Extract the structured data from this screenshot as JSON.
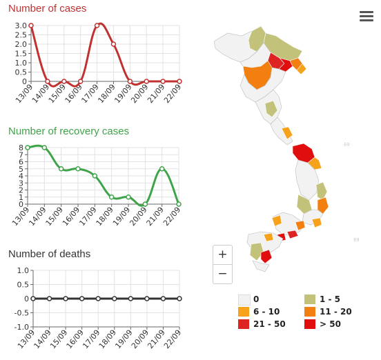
{
  "charts": {
    "cases": {
      "title": "Number of cases",
      "color": "#c0312f"
    },
    "recovery": {
      "title": "Number of recovery cases",
      "color": "#3ea448"
    },
    "deaths": {
      "title": "Number of deaths",
      "color": "#333333"
    }
  },
  "chart_data": [
    {
      "type": "line",
      "title": "Number of cases",
      "categories": [
        "13/09",
        "14/09",
        "15/09",
        "16/09",
        "17/09",
        "18/09",
        "19/09",
        "20/09",
        "21/09",
        "22/09"
      ],
      "values": [
        3,
        0,
        0,
        0,
        3,
        2,
        0,
        0,
        0,
        0
      ],
      "yticks": [
        "3.0",
        "2.5",
        "2.0",
        "1.5",
        "1.0",
        "0.5",
        "0"
      ],
      "ylim": [
        0,
        3
      ],
      "grid": true,
      "color": "#c0312f"
    },
    {
      "type": "line",
      "title": "Number of recovery cases",
      "categories": [
        "13/09",
        "14/09",
        "15/09",
        "16/09",
        "17/09",
        "18/09",
        "19/09",
        "20/09",
        "21/09",
        "22/09"
      ],
      "values": [
        8,
        8,
        5,
        5,
        4,
        1,
        1,
        0,
        5,
        0
      ],
      "yticks": [
        "8",
        "7",
        "6",
        "5",
        "4",
        "3",
        "2",
        "1",
        "0"
      ],
      "ylim": [
        0,
        8
      ],
      "grid": true,
      "color": "#3ea448"
    },
    {
      "type": "line",
      "title": "Number of deaths",
      "categories": [
        "13/09",
        "14/09",
        "15/09",
        "16/09",
        "17/09",
        "18/09",
        "19/09",
        "20/09",
        "21/09",
        "22/09"
      ],
      "values": [
        0,
        0,
        0,
        0,
        0,
        0,
        0,
        0,
        0,
        0
      ],
      "yticks": [
        "1.0",
        "0.5",
        "0",
        "-0.5",
        "-1.0"
      ],
      "ylim": [
        -1,
        1
      ],
      "grid": true,
      "color": "#333333"
    }
  ],
  "map": {
    "zoom_in_label": "+",
    "zoom_out_label": "−",
    "legend": [
      {
        "label": "0",
        "color": "#f2f2f2"
      },
      {
        "label": "1 - 5",
        "color": "#c3c27a"
      },
      {
        "label": "6 - 10",
        "color": "#f7a21b"
      },
      {
        "label": "11 - 20",
        "color": "#f27f10"
      },
      {
        "label": "21 - 50",
        "color": "#dd2423"
      },
      {
        "label": "> 50",
        "color": "#e00e0e"
      }
    ]
  }
}
